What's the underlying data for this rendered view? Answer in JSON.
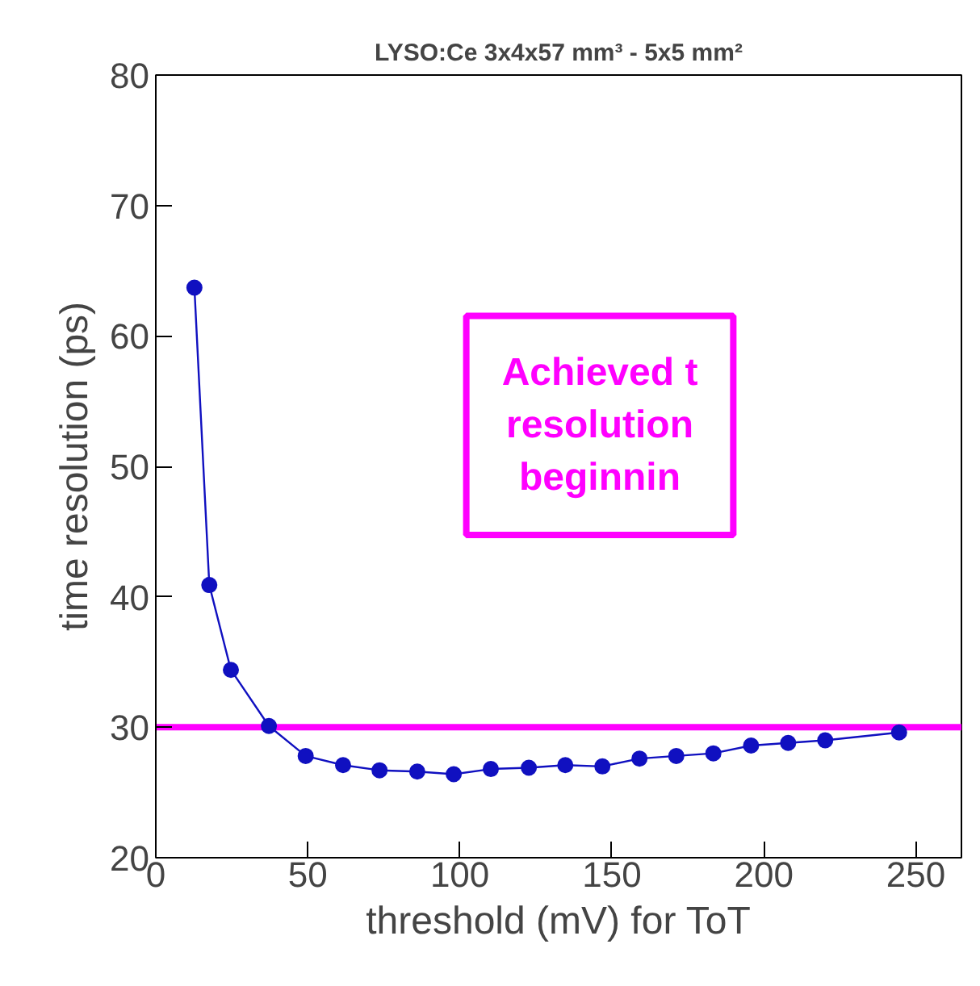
{
  "chart_data": {
    "type": "line",
    "title": "LYSO:Ce 3x4x57 mm³ - 5x5 mm²",
    "xlabel": "threshold (mV) for ToT",
    "ylabel": "time resolution (ps)",
    "xlim": [
      0,
      265
    ],
    "ylim": [
      20,
      80
    ],
    "xticks": [
      0,
      50,
      100,
      150,
      200,
      250
    ],
    "yticks": [
      20,
      30,
      40,
      50,
      60,
      70,
      80
    ],
    "grid": false,
    "series": [
      {
        "marker": "circle",
        "color": "#1010c0",
        "x": [
          12.7,
          17.6,
          24.7,
          37.2,
          49.3,
          61.6,
          73.6,
          86,
          98,
          110.2,
          122.7,
          134.7,
          146.9,
          159.1,
          171.2,
          183.4,
          195.8,
          208,
          220.2,
          244.5
        ],
        "values": [
          63.7,
          40.9,
          34.4,
          30.1,
          27.8,
          27.1,
          26.7,
          26.6,
          26.4,
          26.8,
          26.9,
          27.1,
          27.0,
          27.6,
          27.8,
          28.0,
          28.6,
          28.8,
          29.0,
          29.6
        ]
      }
    ],
    "ref_lines": [
      {
        "axis": "y",
        "value": 30,
        "color": "#ff00ff"
      }
    ],
    "annotations": [
      "Achieved t\nresolution\nbeginnin"
    ]
  }
}
